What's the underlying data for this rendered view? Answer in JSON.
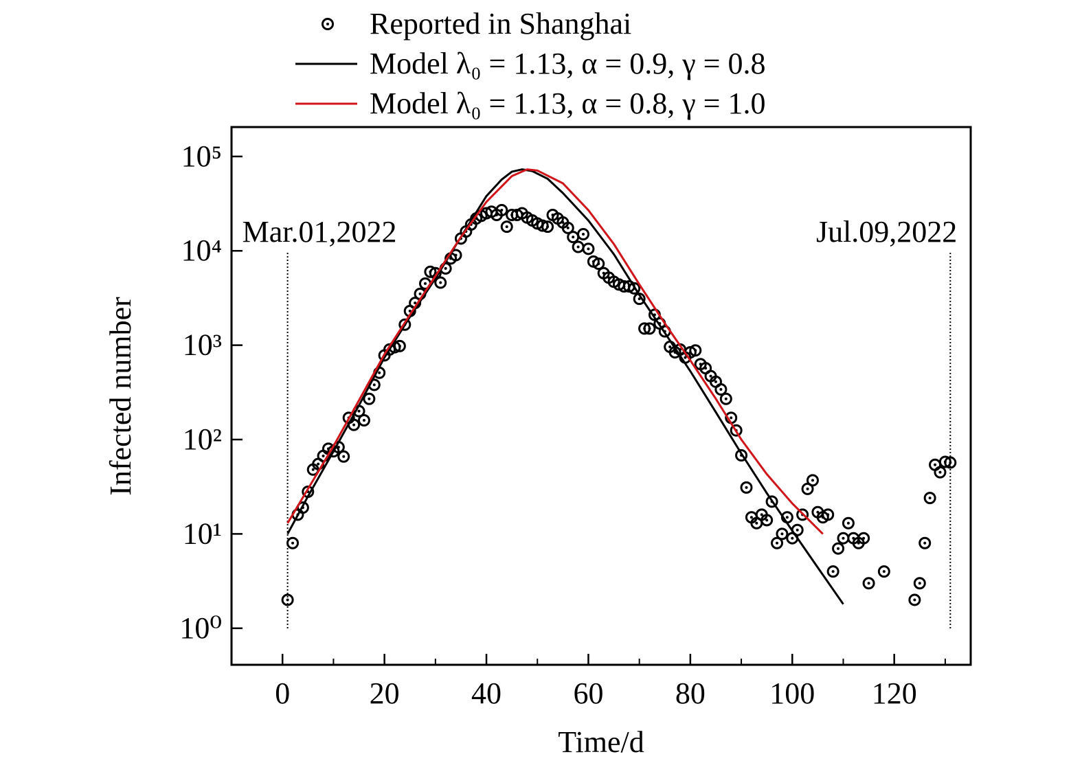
{
  "chart_data": {
    "type": "scatter",
    "x_label": "Time/d",
    "y_label": "Infected number",
    "log_y": true,
    "legend": "top",
    "xlim": [
      -10,
      135
    ],
    "ylim": [
      0.41,
      205000
    ],
    "xticks": [
      0,
      20,
      40,
      60,
      80,
      100,
      120
    ],
    "xminorticks": [
      10,
      30,
      50,
      70,
      90,
      110,
      130
    ],
    "yticks": [
      {
        "value": 1,
        "label": "10⁰"
      },
      {
        "value": 10,
        "label": "10¹"
      },
      {
        "value": 100,
        "label": "10²"
      },
      {
        "value": 1000,
        "label": "10³"
      },
      {
        "value": 10000,
        "label": "10⁴"
      },
      {
        "value": 100000,
        "label": "10⁵"
      }
    ],
    "annotations": [
      {
        "text": "Mar.01,2022",
        "x": 1
      },
      {
        "text": "Jul.09,2022",
        "x": 131
      }
    ],
    "series": [
      {
        "name": "Reported in Shanghai",
        "type": "scatter",
        "color": "#000000",
        "x": [
          1,
          2,
          3,
          4,
          5,
          6,
          7,
          8,
          9,
          10,
          11,
          12,
          13,
          14,
          15,
          16,
          17,
          18,
          19,
          20,
          21,
          22,
          23,
          24,
          25,
          26,
          27,
          28,
          29,
          30,
          31,
          32,
          33,
          34,
          35,
          36,
          37,
          38,
          39,
          40,
          41,
          42,
          43,
          44,
          45,
          46,
          47,
          48,
          49,
          50,
          51,
          52,
          53,
          54,
          55,
          56,
          57,
          58,
          59,
          60,
          61,
          62,
          63,
          64,
          65,
          66,
          67,
          68,
          69,
          70,
          71,
          72,
          73,
          74,
          75,
          76,
          77,
          78,
          79,
          80,
          81,
          82,
          83,
          84,
          85,
          86,
          87,
          88,
          89,
          90,
          91,
          92,
          93,
          94,
          95,
          96,
          97,
          98,
          99,
          100,
          101,
          102,
          103,
          104,
          105,
          106,
          107,
          108,
          109,
          110,
          111,
          112,
          113,
          114,
          115,
          118,
          124,
          125,
          126,
          127,
          128,
          129,
          130,
          131
        ],
        "values": [
          2,
          8,
          16,
          19,
          28,
          48,
          55,
          67,
          80,
          75,
          83,
          66,
          170,
          143,
          200,
          160,
          270,
          380,
          510,
          780,
          900,
          950,
          980,
          1650,
          2300,
          2800,
          3500,
          4500,
          6000,
          5800,
          4600,
          6500,
          8300,
          9000,
          13500,
          16000,
          19000,
          22000,
          23500,
          25000,
          26000,
          24000,
          27000,
          18000,
          24000,
          24000,
          25000,
          22500,
          21000,
          19500,
          18500,
          18000,
          24000,
          22000,
          20000,
          17500,
          14000,
          11000,
          15000,
          10500,
          7700,
          7300,
          5800,
          5200,
          4700,
          4400,
          4200,
          4200,
          4000,
          3100,
          1500,
          1500,
          2100,
          1700,
          1400,
          960,
          840,
          900,
          740,
          840,
          880,
          630,
          570,
          470,
          410,
          340,
          270,
          170,
          125,
          68,
          31,
          15,
          13,
          16,
          14,
          22,
          8,
          10,
          15,
          9,
          11,
          16,
          30,
          37,
          17,
          15,
          16,
          4,
          7,
          9,
          13,
          9,
          8,
          9,
          3,
          4,
          2,
          3,
          8,
          24,
          54,
          45,
          58,
          57
        ]
      },
      {
        "name": "Model λ₀ = 1.13, α = 0.9, γ = 0.8",
        "type": "line",
        "color": "#000000",
        "x": [
          1,
          5,
          10,
          15,
          20,
          25,
          30,
          35,
          40,
          43,
          45,
          47,
          49,
          52,
          55,
          60,
          65,
          70,
          75,
          80,
          85,
          90,
          95,
          100,
          105,
          110
        ],
        "values": [
          10,
          25,
          75,
          230,
          740,
          2000,
          5100,
          14000,
          38000,
          57000,
          69000,
          73000,
          70000,
          58000,
          41000,
          21000,
          9200,
          3400,
          1350,
          530,
          195,
          71,
          27,
          10.8,
          4.4,
          1.8
        ]
      },
      {
        "name": "Model λ₀ = 1.13, α = 0.8, γ = 1.0",
        "type": "line",
        "color": "#d0161b",
        "x": [
          1,
          5,
          10,
          15,
          20,
          25,
          30,
          35,
          40,
          45,
          48,
          50,
          55,
          60,
          65,
          70,
          75,
          80,
          85,
          90,
          95,
          100,
          106
        ],
        "values": [
          13,
          30,
          85,
          260,
          800,
          2100,
          5400,
          14000,
          33000,
          62000,
          73000,
          71000,
          52000,
          27000,
          11800,
          4400,
          1700,
          690,
          270,
          100,
          43,
          21,
          10
        ]
      }
    ]
  }
}
